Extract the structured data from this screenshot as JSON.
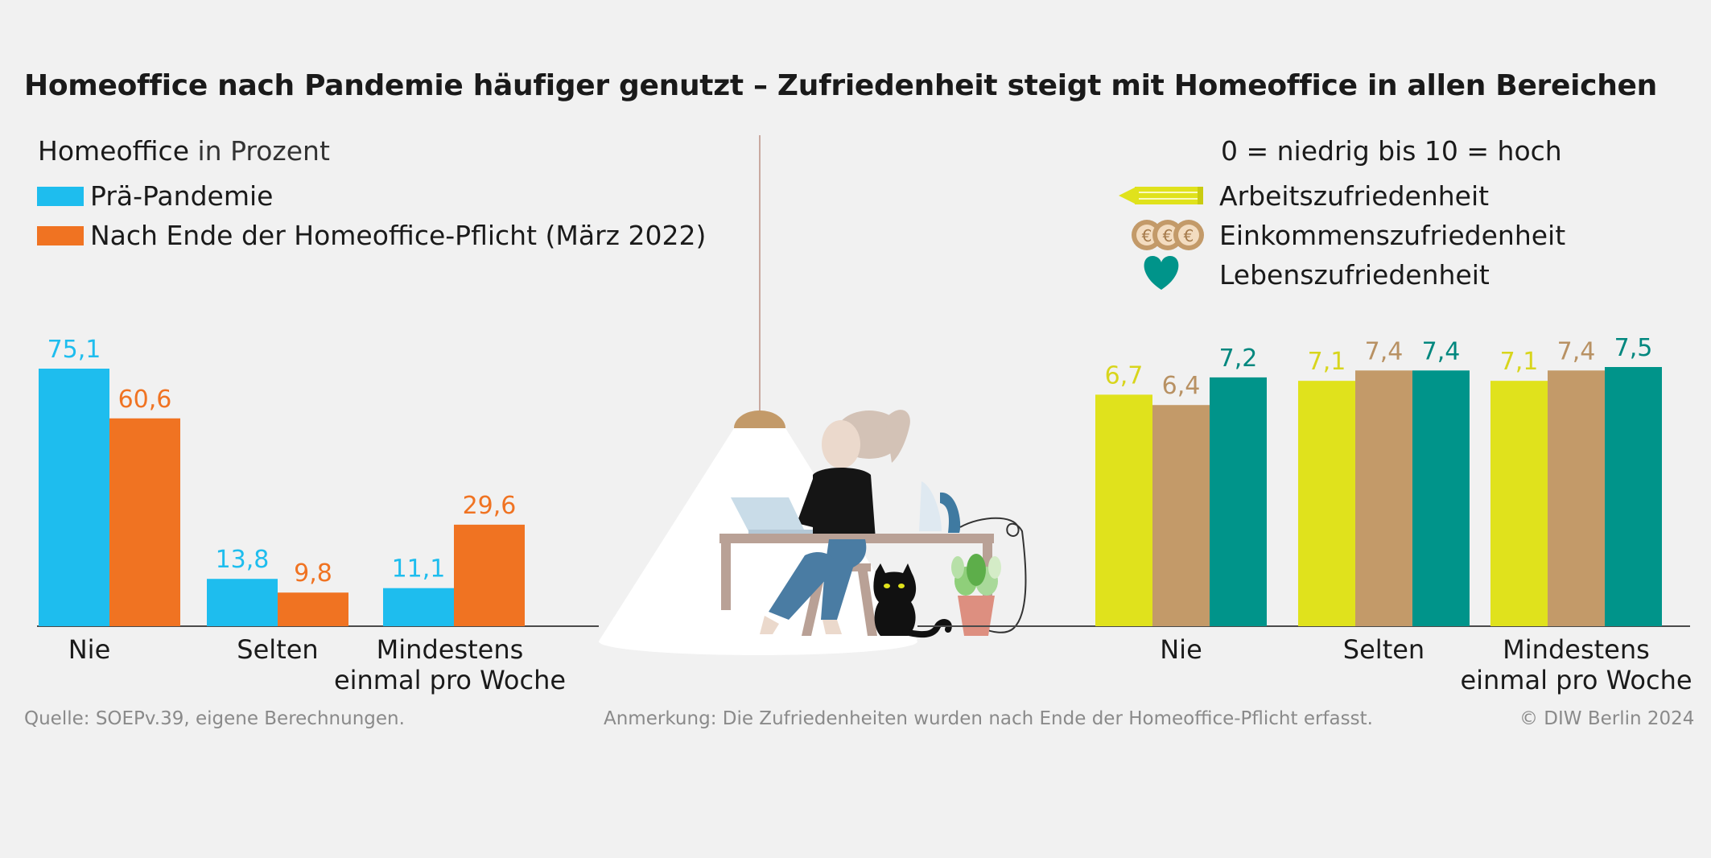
{
  "title": "Homeoffice nach Pandemie häufiger genutzt – Zufriedenheit steigt mit Homeoffice in allen Bereichen",
  "left_legend": {
    "heading_bold": "Homeoffice",
    "heading_rest": " in Prozent",
    "items": [
      "Prä-Pandemie",
      "Nach Ende der Homeoffice-Pflicht (März 2022)"
    ]
  },
  "right_legend": {
    "heading": "0 = niedrig bis 10 = hoch",
    "items": [
      "Arbeitszufriedenheit",
      "Einkommenszufriedenheit",
      "Lebenszufriedenheit"
    ]
  },
  "footer": {
    "source": "Quelle: SOEPv.39, eigene Berechnungen.",
    "note": "Anmerkung: Die Zufriedenheiten wurden nach Ende der Homeoffice-Pflicht erfasst.",
    "copyright": "© DIW Berlin 2024"
  },
  "colors": {
    "pre": "#1ebdee",
    "post": "#f07322",
    "arbeit": "#e0e21c",
    "einkommen": "#c39a69",
    "leben": "#00948a",
    "arbeit_label": "#d8d51c",
    "einkommen_label": "#b89163",
    "leben_label": "#00877e"
  },
  "chart_data": [
    {
      "type": "bar",
      "categories": [
        "Nie",
        "Selten",
        "Mindestens einmal pro Woche"
      ],
      "ylabel": "Homeoffice in Prozent",
      "series": [
        {
          "name": "Prä-Pandemie",
          "values": [
            75.1,
            13.8,
            11.1
          ],
          "labels": [
            "75,1",
            "13,8",
            "11,1"
          ]
        },
        {
          "name": "Nach Ende der Homeoffice-Pflicht (März 2022)",
          "values": [
            60.6,
            9.8,
            29.6
          ],
          "labels": [
            "60,6",
            "9,8",
            "29,6"
          ]
        }
      ]
    },
    {
      "type": "bar",
      "categories": [
        "Nie",
        "Selten",
        "Mindestens einmal pro Woche"
      ],
      "ylabel": "0 = niedrig bis 10 = hoch",
      "series": [
        {
          "name": "Arbeitszufriedenheit",
          "values": [
            6.7,
            7.1,
            7.1
          ],
          "labels": [
            "6,7",
            "7,1",
            "7,1"
          ]
        },
        {
          "name": "Einkommenszufriedenheit",
          "values": [
            6.4,
            7.4,
            7.4
          ],
          "labels": [
            "6,4",
            "7,4",
            "7,4"
          ]
        },
        {
          "name": "Lebenszufriedenheit",
          "values": [
            7.2,
            7.4,
            7.5
          ],
          "labels": [
            "7,2",
            "7,4",
            "7,5"
          ]
        }
      ]
    }
  ]
}
